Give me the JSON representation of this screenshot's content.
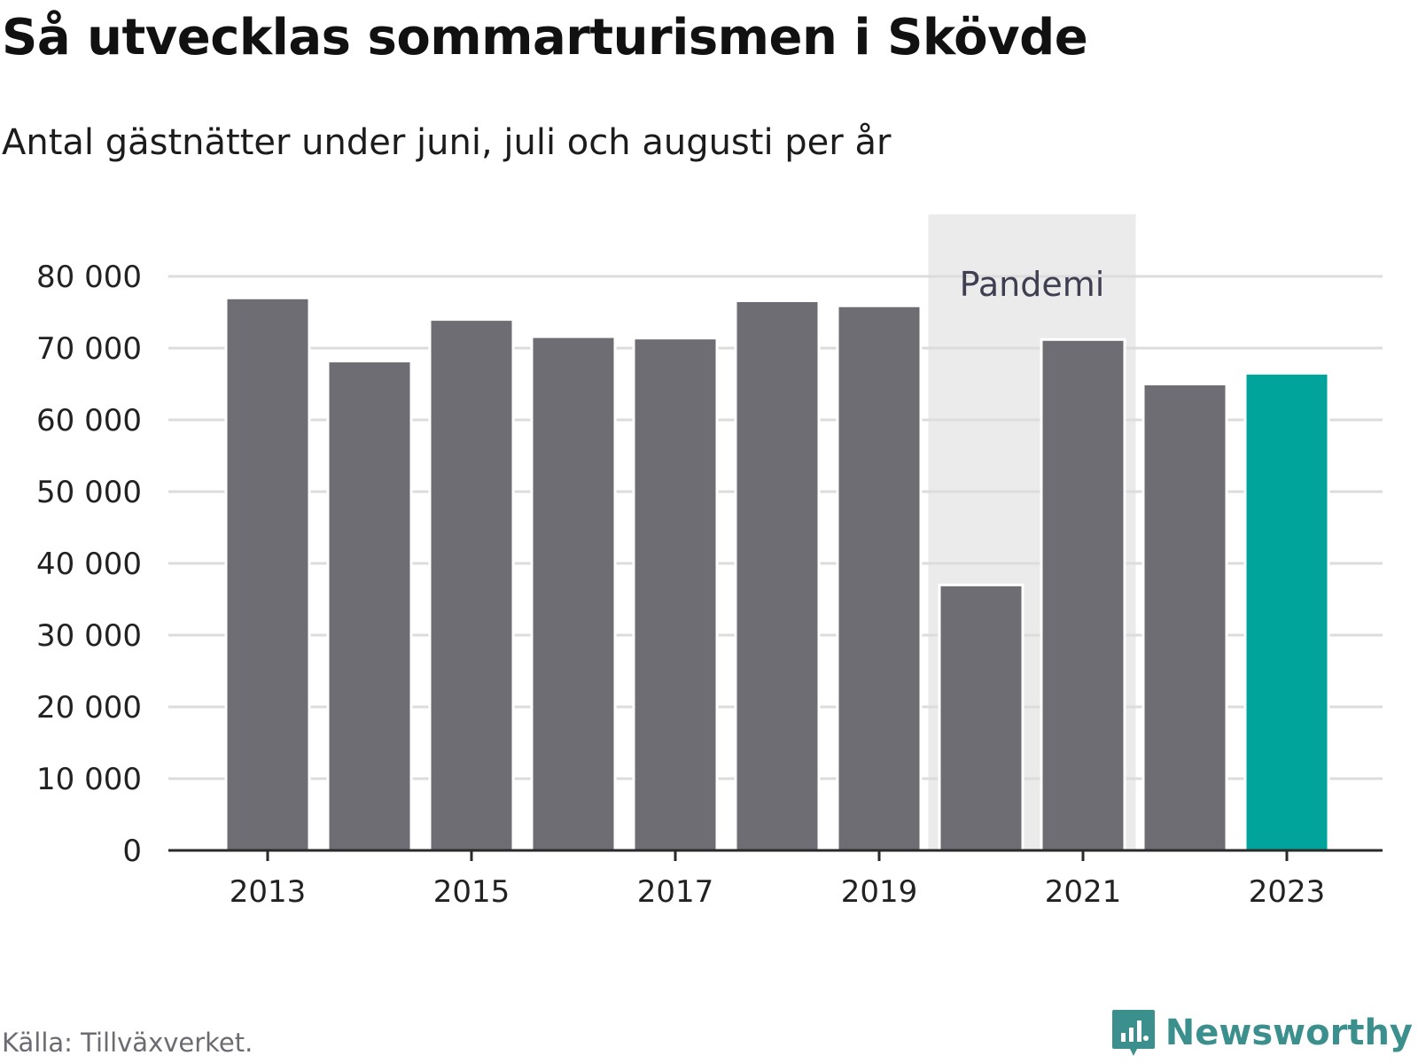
{
  "header": {
    "title": "Så utvecklas sommarturismen i Skövde",
    "subtitle": "Antal gästnätter under juni, juli och augusti per år"
  },
  "footer": {
    "source": "Källa: Tillväxverket.",
    "brand": "Newsworthy",
    "brand_icon": "bar-chart-speech-bubble-icon"
  },
  "colors": {
    "bar": "#6e6d74",
    "highlight": "#00a49a",
    "pandemic_band": "#ebebeb",
    "grid": "#dcdcdc",
    "axis": "#2a2a2a",
    "brand": "#3b8f8c"
  },
  "chart_data": {
    "type": "bar",
    "categories": [
      "2013",
      "2014",
      "2015",
      "2016",
      "2017",
      "2018",
      "2019",
      "2020",
      "2021",
      "2022",
      "2023"
    ],
    "values": [
      77000,
      68200,
      74000,
      71600,
      71400,
      76600,
      75900,
      37000,
      71200,
      65000,
      66500
    ],
    "highlight_category": "2023",
    "x_tick_labels": [
      "2013",
      "2015",
      "2017",
      "2019",
      "2021",
      "2023"
    ],
    "y_ticks": [
      0,
      10000,
      20000,
      30000,
      40000,
      50000,
      60000,
      70000,
      80000
    ],
    "y_tick_labels": [
      "0",
      "10 000",
      "20 000",
      "30 000",
      "40 000",
      "50 000",
      "60 000",
      "70 000",
      "80 000"
    ],
    "ylim": [
      0,
      80000
    ],
    "grid": true,
    "annotation": {
      "label": "Pandemi",
      "from": "2020",
      "to": "2021"
    }
  }
}
